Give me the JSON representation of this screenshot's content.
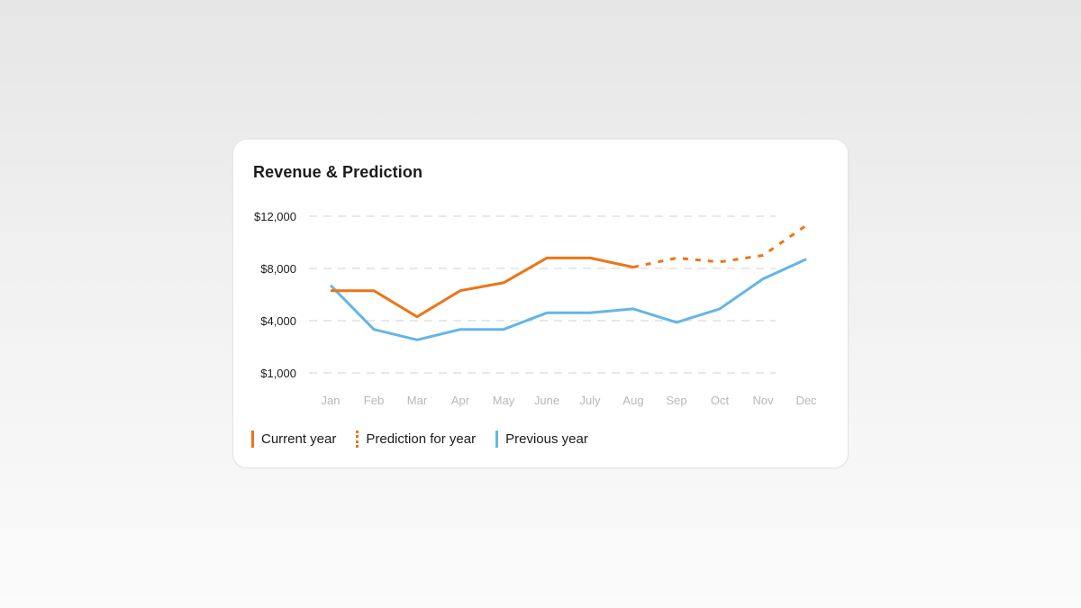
{
  "card": {
    "title": "Revenue & Prediction"
  },
  "chart_data": {
    "type": "line",
    "title": "Revenue & Prediction",
    "categories": [
      "Jan",
      "Feb",
      "Mar",
      "Apr",
      "May",
      "June",
      "July",
      "Aug",
      "Sep",
      "Oct",
      "Nov",
      "Dec"
    ],
    "y_ticks": [
      {
        "value": 12000,
        "label": "$12,000"
      },
      {
        "value": 8000,
        "label": "$8,000"
      },
      {
        "value": 4000,
        "label": "$4,000"
      },
      {
        "value": 1000,
        "label": "$1,000"
      }
    ],
    "grid": "horizontal-dashed",
    "legend_placement": "bottom-left",
    "series": [
      {
        "key": "current",
        "name": "Current year",
        "style": "solid",
        "color": "#ee7417",
        "points": [
          {
            "x": "Jan",
            "y": 6300
          },
          {
            "x": "Feb",
            "y": 6300
          },
          {
            "x": "Mar",
            "y": 4300
          },
          {
            "x": "Apr",
            "y": 6300
          },
          {
            "x": "May",
            "y": 6900
          },
          {
            "x": "June",
            "y": 8800
          },
          {
            "x": "July",
            "y": 8800
          },
          {
            "x": "Aug",
            "y": 8100
          }
        ]
      },
      {
        "key": "prediction",
        "name": "Prediction for year",
        "style": "dotted",
        "color": "#ee7417",
        "points": [
          {
            "x": "Aug",
            "y": 8100
          },
          {
            "x": "Sep",
            "y": 8800
          },
          {
            "x": "Oct",
            "y": 8500
          },
          {
            "x": "Nov",
            "y": 9000
          },
          {
            "x": "Dec",
            "y": 11300
          }
        ]
      },
      {
        "key": "previous",
        "name": "Previous year",
        "style": "solid",
        "color": "#65b5e6",
        "points": [
          {
            "x": "Jan",
            "y": 6700
          },
          {
            "x": "Feb",
            "y": 3500
          },
          {
            "x": "Mar",
            "y": 2900
          },
          {
            "x": "Apr",
            "y": 3500
          },
          {
            "x": "May",
            "y": 3500
          },
          {
            "x": "June",
            "y": 4600
          },
          {
            "x": "July",
            "y": 4600
          },
          {
            "x": "Aug",
            "y": 4900
          },
          {
            "x": "Sep",
            "y": 3900
          },
          {
            "x": "Oct",
            "y": 4900
          },
          {
            "x": "Nov",
            "y": 7200
          },
          {
            "x": "Dec",
            "y": 8700
          }
        ]
      }
    ]
  }
}
